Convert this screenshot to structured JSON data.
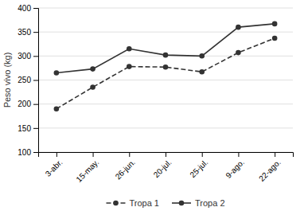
{
  "chart_data": {
    "type": "line",
    "categories": [
      "3-abr.",
      "15-may.",
      "26-jun.",
      "20-jul.",
      "25-jul.",
      "9-ago.",
      "22-ago."
    ],
    "series": [
      {
        "name": "Tropa 1",
        "color": "#333333",
        "line_style": "dashed",
        "marker": "circle",
        "values": [
          190,
          235,
          278,
          277,
          267,
          307,
          337
        ]
      },
      {
        "name": "Tropa 2",
        "color": "#333333",
        "line_style": "solid",
        "marker": "circle",
        "values": [
          265,
          273,
          315,
          302,
          300,
          360,
          367
        ]
      }
    ],
    "ylabel": "Peso vivo (kg)",
    "ylim": [
      100,
      400
    ],
    "yticks": [
      100,
      150,
      200,
      250,
      300,
      350,
      400
    ],
    "grid": true,
    "legend": "bottom"
  }
}
